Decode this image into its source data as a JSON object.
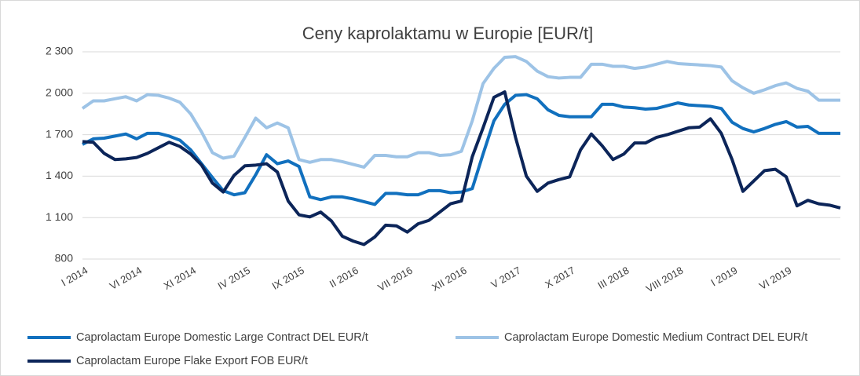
{
  "chart_data": {
    "type": "line",
    "title": "Ceny kaprolaktamu w Europie [EUR/t]",
    "categories": [
      "I 2014",
      null,
      null,
      null,
      null,
      "VI 2014",
      null,
      null,
      null,
      null,
      "XI 2014",
      null,
      null,
      null,
      null,
      "IV 2015",
      null,
      null,
      null,
      null,
      "IX 2015",
      null,
      null,
      null,
      null,
      "II 2016",
      null,
      null,
      null,
      null,
      "VII 2016",
      null,
      null,
      null,
      null,
      "XII 2016",
      null,
      null,
      null,
      null,
      "V 2017",
      null,
      null,
      null,
      null,
      "X 2017",
      null,
      null,
      null,
      null,
      "III 2018",
      null,
      null,
      null,
      null,
      "VIII 2018",
      null,
      null,
      null,
      null,
      "I 2019",
      null,
      null,
      null,
      null,
      "VI 2019",
      null,
      null,
      null,
      null,
      null
    ],
    "series": [
      {
        "name": "Caprolactam Europe Domestic Large Contract DEL EUR/t",
        "color": "#1170be",
        "values": [
          1630,
          1670,
          1675,
          1690,
          1705,
          1670,
          1710,
          1710,
          1690,
          1660,
          1590,
          1490,
          1390,
          1295,
          1265,
          1280,
          1410,
          1555,
          1490,
          1510,
          1470,
          1250,
          1230,
          1250,
          1250,
          1235,
          1215,
          1195,
          1275,
          1275,
          1265,
          1265,
          1295,
          1295,
          1280,
          1285,
          1310,
          1560,
          1800,
          1920,
          1985,
          1990,
          1960,
          1880,
          1840,
          1830,
          1830,
          1830,
          1920,
          1920,
          1900,
          1895,
          1885,
          1890,
          1910,
          1930,
          1915,
          1910,
          1905,
          1890,
          1790,
          1745,
          1720,
          1745,
          1775,
          1795,
          1755,
          1760,
          1710,
          1710,
          1710
        ]
      },
      {
        "name": "Caprolactam Europe Domestic Medium Contract DEL EUR/t",
        "color": "#9dc3e6",
        "values": [
          1890,
          1945,
          1945,
          1960,
          1975,
          1945,
          1990,
          1985,
          1965,
          1935,
          1850,
          1720,
          1570,
          1530,
          1545,
          1680,
          1820,
          1750,
          1785,
          1750,
          1520,
          1500,
          1520,
          1520,
          1505,
          1485,
          1465,
          1550,
          1550,
          1540,
          1540,
          1570,
          1570,
          1550,
          1555,
          1580,
          1800,
          2070,
          2180,
          2260,
          2265,
          2230,
          2160,
          2120,
          2110,
          2115,
          2115,
          2210,
          2210,
          2195,
          2195,
          2180,
          2190,
          2210,
          2230,
          2215,
          2210,
          2205,
          2200,
          2190,
          2090,
          2040,
          2000,
          2025,
          2055,
          2075,
          2035,
          2015,
          1950,
          1950,
          1950
        ]
      },
      {
        "name": "Caprolactam Europe Flake Export FOB EUR/t",
        "color": "#0c2559",
        "values": [
          1650,
          1645,
          1565,
          1520,
          1525,
          1535,
          1565,
          1605,
          1645,
          1615,
          1560,
          1480,
          1350,
          1285,
          1405,
          1475,
          1480,
          1490,
          1430,
          1220,
          1120,
          1105,
          1140,
          1075,
          965,
          930,
          905,
          960,
          1045,
          1040,
          995,
          1055,
          1080,
          1140,
          1200,
          1220,
          1540,
          1750,
          1970,
          2010,
          1680,
          1400,
          1290,
          1350,
          1375,
          1395,
          1590,
          1705,
          1620,
          1520,
          1560,
          1640,
          1640,
          1680,
          1700,
          1725,
          1750,
          1755,
          1815,
          1710,
          1520,
          1290,
          1365,
          1440,
          1450,
          1395,
          1185,
          1225,
          1200,
          1190,
          1170
        ]
      }
    ],
    "ylim": [
      800,
      2300
    ],
    "yticks": [
      {
        "value": 800,
        "label": "800"
      },
      {
        "value": 1100,
        "label": "1 100"
      },
      {
        "value": 1400,
        "label": "1 400"
      },
      {
        "value": 1700,
        "label": "1 700"
      },
      {
        "value": 2000,
        "label": "2 000"
      },
      {
        "value": 2300,
        "label": "2 300"
      }
    ],
    "grid": true
  }
}
